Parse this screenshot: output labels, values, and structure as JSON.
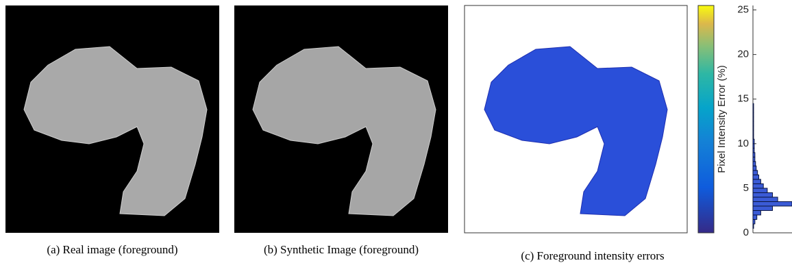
{
  "captions": [
    "(a) Real image (foreground)",
    "(b) Synthetic Image (foreground)",
    "(c) Foreground intensity errors"
  ],
  "colorbar": {
    "label": "Pixel Intensity Error (%)",
    "ylim": [
      0,
      25.5
    ],
    "yticks": [
      0,
      5,
      10,
      15,
      20,
      25
    ]
  },
  "histogram": {
    "bins": [
      0.5,
      1,
      1.5,
      2,
      2.5,
      3,
      3.5,
      4,
      4.5,
      5,
      5.5,
      6,
      6.5,
      7,
      7.5,
      8,
      8.5,
      9,
      9.5,
      10,
      10.5,
      11,
      11.5,
      12,
      12.5,
      13,
      13.5,
      14,
      14.5
    ],
    "counts": [
      1,
      3,
      6,
      12,
      30,
      60,
      38,
      30,
      22,
      16,
      12,
      9,
      7,
      5,
      4,
      3,
      3,
      2,
      2,
      2,
      1,
      1,
      1,
      1,
      1,
      1,
      1,
      1
    ],
    "xlim": [
      0,
      60
    ]
  }
}
